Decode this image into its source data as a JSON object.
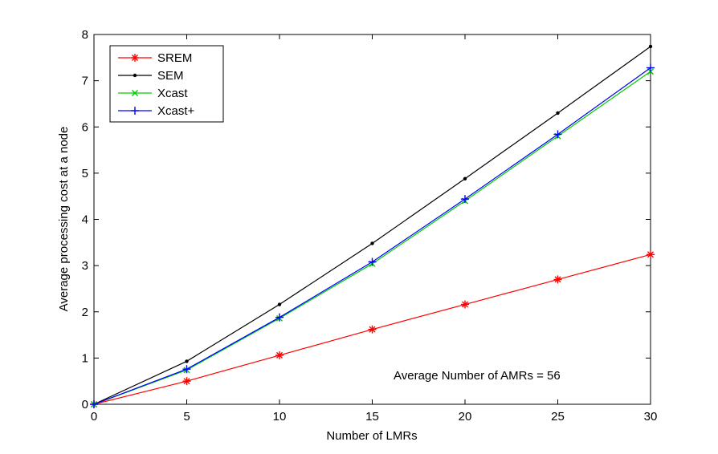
{
  "chart_data": {
    "type": "line",
    "title": "",
    "xlabel": "Number of LMRs",
    "ylabel": "Average processing cost at a node",
    "xlim": [
      0,
      30
    ],
    "ylim": [
      0,
      8
    ],
    "xticks": [
      0,
      5,
      10,
      15,
      20,
      25,
      30
    ],
    "yticks": [
      0,
      1,
      2,
      3,
      4,
      5,
      6,
      7,
      8
    ],
    "grid": false,
    "legend_position": "top-left",
    "x": [
      0,
      5,
      10,
      15,
      20,
      25,
      30
    ],
    "series": [
      {
        "name": "SREM",
        "color": "#ff0000",
        "marker": "asterisk",
        "values": [
          0,
          0.5,
          1.06,
          1.62,
          2.16,
          2.7,
          3.24
        ]
      },
      {
        "name": "SEM",
        "color": "#000000",
        "marker": "dot",
        "values": [
          0,
          0.93,
          2.16,
          3.48,
          4.88,
          6.3,
          7.74
        ]
      },
      {
        "name": "Xcast",
        "color": "#00cc00",
        "marker": "x",
        "values": [
          0,
          0.74,
          1.86,
          3.04,
          4.4,
          5.8,
          7.2
        ]
      },
      {
        "name": "Xcast+",
        "color": "#0000ff",
        "marker": "plus",
        "values": [
          0,
          0.76,
          1.88,
          3.08,
          4.44,
          5.84,
          7.28
        ]
      }
    ],
    "annotations": [
      {
        "text": "Average Number of AMRs = 56"
      }
    ]
  }
}
